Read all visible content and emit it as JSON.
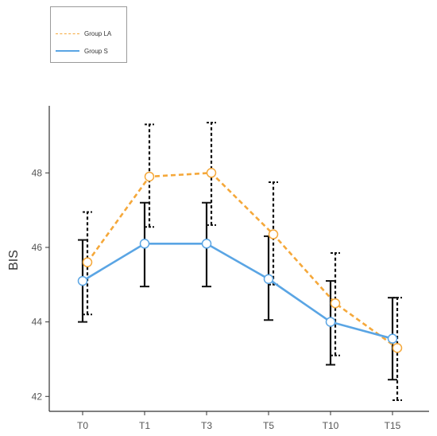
{
  "chart_data": {
    "type": "line",
    "title": "",
    "xlabel": "",
    "ylabel": "BIS",
    "categories": [
      "T0",
      "T1",
      "T3",
      "T5",
      "T10",
      "T15"
    ],
    "ylim": [
      41.6,
      49.8
    ],
    "yticks": [
      42,
      44,
      46,
      48
    ],
    "grid": false,
    "legend_position": "top-left",
    "series": [
      {
        "name": "Group LA",
        "color": "#f5a83a",
        "line_style": "dashed",
        "values": [
          45.6,
          47.9,
          48.0,
          46.35,
          44.5,
          43.3
        ],
        "error_low": [
          44.2,
          46.55,
          46.6,
          45.0,
          43.1,
          41.9
        ],
        "error_high": [
          46.95,
          49.3,
          49.35,
          47.75,
          45.85,
          44.65
        ]
      },
      {
        "name": "Group S",
        "color": "#5aa5e4",
        "line_style": "solid",
        "values": [
          45.1,
          46.1,
          46.1,
          45.15,
          44.0,
          43.55
        ],
        "error_low": [
          44.0,
          44.95,
          44.95,
          44.05,
          42.85,
          42.45
        ],
        "error_high": [
          46.2,
          47.2,
          47.2,
          46.3,
          45.1,
          44.65
        ]
      }
    ]
  }
}
